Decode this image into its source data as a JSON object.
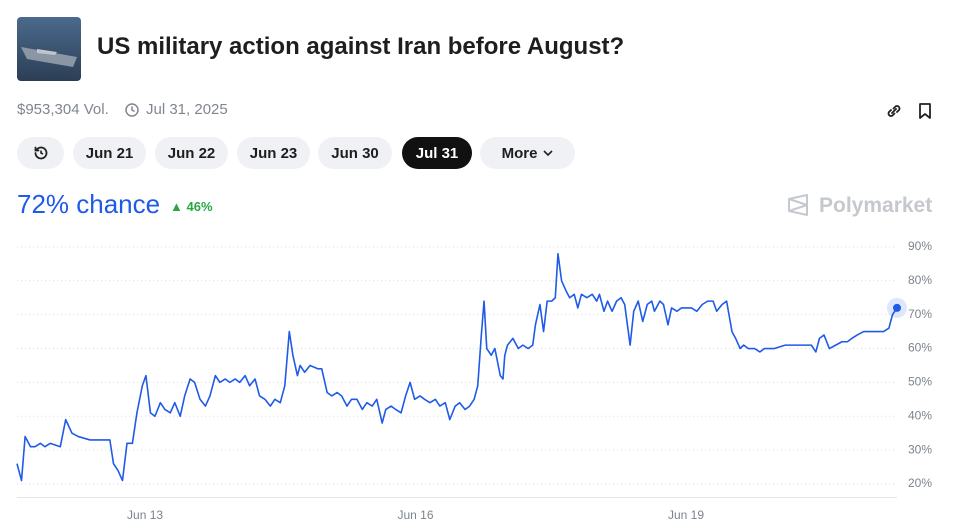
{
  "header": {
    "title": "US military action against Iran before August?",
    "volume": "$953,304 Vol.",
    "end_date": "Jul 31, 2025"
  },
  "toolbar": {
    "buttons": [
      "Jun 21",
      "Jun 22",
      "Jun 23",
      "Jun 30",
      "Jul 31",
      "More"
    ]
  },
  "summary": {
    "headline": "72% chance",
    "change": "46%",
    "brand": "Polymarket"
  },
  "chart_data": {
    "type": "line",
    "color": "#1f5ae8",
    "grid": true,
    "xlim": [
      11.58,
      21.34
    ],
    "xticks": [
      {
        "value": 13,
        "label": "Jun 13"
      },
      {
        "value": 16,
        "label": "Jun 16"
      },
      {
        "value": 19,
        "label": "Jun 19"
      }
    ],
    "ylim": [
      16,
      94
    ],
    "yticks": [
      {
        "value": 20,
        "label": "20%"
      },
      {
        "value": 30,
        "label": "30%"
      },
      {
        "value": 40,
        "label": "40%"
      },
      {
        "value": 50,
        "label": "50%"
      },
      {
        "value": 60,
        "label": "60%"
      },
      {
        "value": 70,
        "label": "70%"
      },
      {
        "value": 80,
        "label": "80%"
      },
      {
        "value": 90,
        "label": "90%"
      }
    ],
    "x": [
      11.58,
      11.63,
      11.67,
      11.73,
      11.78,
      11.84,
      11.89,
      11.95,
      12.06,
      12.12,
      12.19,
      12.26,
      12.39,
      12.61,
      12.65,
      12.7,
      12.75,
      12.8,
      12.86,
      12.91,
      12.97,
      13.01,
      13.06,
      13.11,
      13.17,
      13.22,
      13.28,
      13.33,
      13.39,
      13.44,
      13.5,
      13.55,
      13.61,
      13.67,
      13.72,
      13.78,
      13.83,
      13.89,
      13.94,
      14.0,
      14.05,
      14.11,
      14.16,
      14.22,
      14.27,
      14.33,
      14.39,
      14.44,
      14.5,
      14.55,
      14.6,
      14.64,
      14.69,
      14.72,
      14.77,
      14.83,
      14.92,
      14.96,
      15.02,
      15.07,
      15.13,
      15.18,
      15.24,
      15.29,
      15.35,
      15.41,
      15.46,
      15.52,
      15.57,
      15.63,
      15.67,
      15.73,
      15.78,
      15.84,
      15.89,
      15.94,
      15.99,
      16.05,
      16.1,
      16.16,
      16.22,
      16.27,
      16.33,
      16.38,
      16.44,
      16.49,
      16.55,
      16.6,
      16.65,
      16.69,
      16.73,
      16.76,
      16.79,
      16.84,
      16.88,
      16.94,
      16.97,
      16.99,
      17.02,
      17.08,
      17.14,
      17.19,
      17.25,
      17.3,
      17.33,
      17.38,
      17.42,
      17.46,
      17.51,
      17.55,
      17.58,
      17.62,
      17.67,
      17.71,
      17.76,
      17.8,
      17.84,
      17.9,
      17.96,
      18.01,
      18.04,
      18.09,
      18.13,
      18.18,
      18.23,
      18.28,
      18.32,
      18.38,
      18.42,
      18.47,
      18.52,
      18.57,
      18.62,
      18.65,
      18.71,
      18.75,
      18.8,
      18.84,
      18.9,
      18.95,
      19.01,
      19.06,
      19.12,
      19.18,
      19.24,
      19.3,
      19.34,
      19.4,
      19.45,
      19.51,
      19.55,
      19.6,
      19.64,
      19.69,
      19.76,
      19.82,
      19.87,
      19.93,
      19.98,
      20.1,
      20.21,
      20.32,
      20.39,
      20.44,
      20.48,
      20.53,
      20.59,
      20.66,
      20.73,
      20.79,
      20.84,
      20.9,
      20.97,
      21.04,
      21.13,
      21.19,
      21.25,
      21.29,
      21.34
    ],
    "values": [
      26,
      21,
      34,
      31,
      31,
      32,
      31,
      32,
      31,
      39,
      35,
      34,
      33,
      33,
      26,
      24,
      21,
      32,
      32,
      41,
      49,
      52,
      41,
      40,
      44,
      42,
      41,
      44,
      40,
      46,
      51,
      50,
      45,
      43,
      46,
      52,
      50,
      51,
      50,
      51,
      50,
      52,
      49,
      51,
      46,
      45,
      43,
      45,
      44,
      49,
      65,
      58,
      52,
      55,
      53,
      55,
      54,
      54,
      47,
      46,
      47,
      46,
      43,
      45,
      45,
      42,
      44,
      43,
      45,
      38,
      42,
      43,
      42,
      41,
      46,
      50,
      45,
      46,
      45,
      44,
      45,
      43,
      44,
      39,
      43,
      44,
      42,
      43,
      45,
      49,
      64,
      74,
      60,
      58,
      60,
      52,
      51,
      58,
      61,
      63,
      60,
      61,
      60,
      61,
      67,
      73,
      65,
      74,
      74,
      75,
      88,
      80,
      77,
      75,
      76,
      72,
      76,
      75,
      76,
      74,
      76,
      71,
      74,
      71,
      74,
      75,
      73,
      61,
      71,
      74,
      68,
      73,
      74,
      71,
      74,
      73,
      67,
      72,
      71,
      72,
      72,
      72,
      71,
      73,
      74,
      74,
      71,
      73,
      74,
      65,
      63,
      60,
      61,
      60,
      60,
      59,
      60,
      60,
      60,
      61,
      61,
      61,
      61,
      59,
      63,
      64,
      60,
      61,
      62,
      62,
      63,
      64,
      65,
      65,
      65,
      65,
      66,
      70,
      72
    ]
  }
}
